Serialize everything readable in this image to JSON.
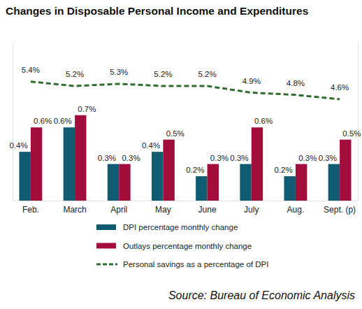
{
  "chart_data": {
    "type": "bar",
    "title": "Changes in Disposable Personal Income and Expenditures",
    "source": "Source: Bureau of Economic Analysis",
    "categories": [
      "Feb.",
      "March",
      "April",
      "May",
      "June",
      "July",
      "Aug.",
      "Sept. (p)"
    ],
    "series": [
      {
        "name": "DPI percentage monthly change",
        "color": "#0f5b72",
        "type": "bar",
        "values": [
          0.4,
          0.6,
          0.3,
          0.4,
          0.2,
          0.3,
          0.2,
          0.3
        ],
        "value_labels": [
          "0.4%",
          "0.6%",
          "0.3%",
          "0.4%",
          "0.2%",
          "0.3%",
          "0.2%",
          "0.3%"
        ]
      },
      {
        "name": "Outlays percentage monthly change",
        "color": "#a30d3b",
        "type": "bar",
        "values": [
          0.6,
          0.7,
          0.3,
          0.5,
          0.3,
          0.6,
          0.3,
          0.5
        ],
        "value_labels": [
          "0.6%",
          "0.7%",
          "0.3%",
          "0.5%",
          "0.3%",
          "0.6%",
          "0.3%",
          "0.5%"
        ]
      },
      {
        "name": "Personal savings as a percentage of DPI",
        "color": "#2f6e2f",
        "type": "line",
        "axis": "y2",
        "line_style": "dashed",
        "values": [
          5.4,
          5.2,
          5.3,
          5.2,
          5.2,
          4.9,
          4.8,
          4.6
        ],
        "value_labels": [
          "5.4%",
          "5.2%",
          "5.3%",
          "5.2%",
          "5.2%",
          "4.9%",
          "4.8%",
          "4.6%"
        ]
      }
    ],
    "ylim": [
      0,
      1.3
    ],
    "yticks": [],
    "y2lim": [
      0,
      7.2
    ],
    "y2ticks": [],
    "tick_labels": "x",
    "grid": false,
    "data_labels": true,
    "legend": "bottom"
  }
}
